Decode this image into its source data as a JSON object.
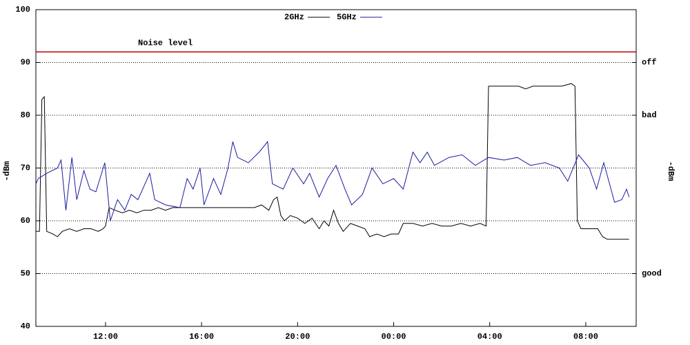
{
  "chart_data": {
    "type": "line",
    "ylabel": "-dBm",
    "y2label": "-dBm",
    "xlim": [
      9.1,
      34.1
    ],
    "ylim": [
      40,
      100
    ],
    "xticks": [
      {
        "value": 12,
        "label": "12:00"
      },
      {
        "value": 16,
        "label": "16:00"
      },
      {
        "value": 20,
        "label": "20:00"
      },
      {
        "value": 24,
        "label": "00:00"
      },
      {
        "value": 28,
        "label": "04:00"
      },
      {
        "value": 32,
        "label": "08:00"
      }
    ],
    "yticks": [
      40,
      50,
      60,
      70,
      80,
      90,
      100
    ],
    "y2ticks": [
      {
        "value": 90,
        "label": "off"
      },
      {
        "value": 80,
        "label": "bad"
      },
      {
        "value": 50,
        "label": "good"
      }
    ],
    "grid": true,
    "noise": {
      "label": "Noise level",
      "value": 92,
      "color": "#c00000"
    },
    "series": [
      {
        "name": "2GHz",
        "color": "#000000",
        "x": [
          9.1,
          9.25,
          9.35,
          9.45,
          9.55,
          9.8,
          10.0,
          10.2,
          10.5,
          10.8,
          11.1,
          11.4,
          11.7,
          11.9,
          12.0,
          12.15,
          12.4,
          12.7,
          13.0,
          13.3,
          13.6,
          13.9,
          14.2,
          14.5,
          14.8,
          15.1,
          15.5,
          15.9,
          16.3,
          16.7,
          17.1,
          17.5,
          17.9,
          18.2,
          18.5,
          18.8,
          19.0,
          19.15,
          19.3,
          19.45,
          19.7,
          20.0,
          20.3,
          20.6,
          20.9,
          21.1,
          21.3,
          21.5,
          21.7,
          21.9,
          22.2,
          22.5,
          22.8,
          23.0,
          23.3,
          23.6,
          23.9,
          24.2,
          24.4,
          24.8,
          25.2,
          25.6,
          26.0,
          26.4,
          26.8,
          27.2,
          27.6,
          27.85,
          27.95,
          28.4,
          28.8,
          29.2,
          29.5,
          29.8,
          30.2,
          30.6,
          31.0,
          31.4,
          31.55,
          31.65,
          31.8,
          32.2,
          32.5,
          32.7,
          32.9,
          33.2,
          33.5,
          33.8
        ],
        "values": [
          58,
          58,
          83,
          83.5,
          58,
          57.5,
          57,
          58,
          58.5,
          58,
          58.5,
          58.5,
          58,
          58.5,
          59,
          62.5,
          62,
          61.5,
          62,
          61.5,
          62,
          62,
          62.5,
          62,
          62.5,
          62.5,
          62.5,
          62.5,
          62.5,
          62.5,
          62.5,
          62.5,
          62.5,
          62.5,
          63,
          62,
          64,
          64.5,
          61,
          60,
          61,
          60.5,
          59.5,
          60.5,
          58.5,
          60,
          59,
          62,
          59.5,
          58,
          59.5,
          59,
          58.5,
          57,
          57.5,
          57,
          57.5,
          57.5,
          59.5,
          59.5,
          59,
          59.5,
          59,
          59,
          59.5,
          59,
          59.5,
          59,
          85.5,
          85.5,
          85.5,
          85.5,
          85,
          85.5,
          85.5,
          85.5,
          85.5,
          86,
          85.5,
          60,
          58.5,
          58.5,
          58.5,
          57,
          56.5,
          56.5,
          56.5,
          56.5
        ]
      },
      {
        "name": "5GHz",
        "color": "#1a1aa0",
        "x": [
          9.1,
          9.2,
          9.55,
          10.0,
          10.15,
          10.35,
          10.6,
          10.8,
          11.1,
          11.35,
          11.6,
          11.97,
          12.2,
          12.5,
          12.8,
          13.07,
          13.35,
          13.84,
          14.05,
          14.5,
          15.1,
          15.4,
          15.65,
          15.94,
          16.1,
          16.5,
          16.8,
          17.1,
          17.3,
          17.5,
          17.95,
          18.4,
          18.75,
          18.95,
          19.4,
          19.8,
          20.25,
          20.5,
          20.9,
          21.25,
          21.6,
          21.97,
          22.25,
          22.7,
          23.1,
          23.55,
          24.0,
          24.4,
          24.8,
          25.1,
          25.4,
          25.7,
          26.3,
          26.85,
          27.4,
          27.95,
          28.6,
          29.15,
          29.7,
          30.3,
          30.9,
          31.25,
          31.7,
          32.15,
          32.45,
          32.75,
          33.2,
          33.5,
          33.7,
          33.8
        ],
        "values": [
          67,
          68,
          69,
          70,
          71.5,
          62,
          72,
          64,
          69.5,
          66,
          65.5,
          71,
          60,
          64,
          62,
          65,
          64,
          69,
          64,
          63,
          62.5,
          68,
          66,
          70,
          63,
          68,
          65,
          70,
          75,
          72,
          71,
          73,
          75,
          67,
          66,
          70,
          67,
          69,
          64.5,
          68,
          70.5,
          66,
          63,
          65,
          70,
          67,
          68,
          66,
          73,
          71,
          73,
          70.5,
          72,
          72.5,
          70.5,
          72,
          71.5,
          72,
          70.5,
          71,
          70,
          67.5,
          72.5,
          70,
          66,
          71,
          63.5,
          64,
          66,
          64.5
        ]
      }
    ]
  }
}
